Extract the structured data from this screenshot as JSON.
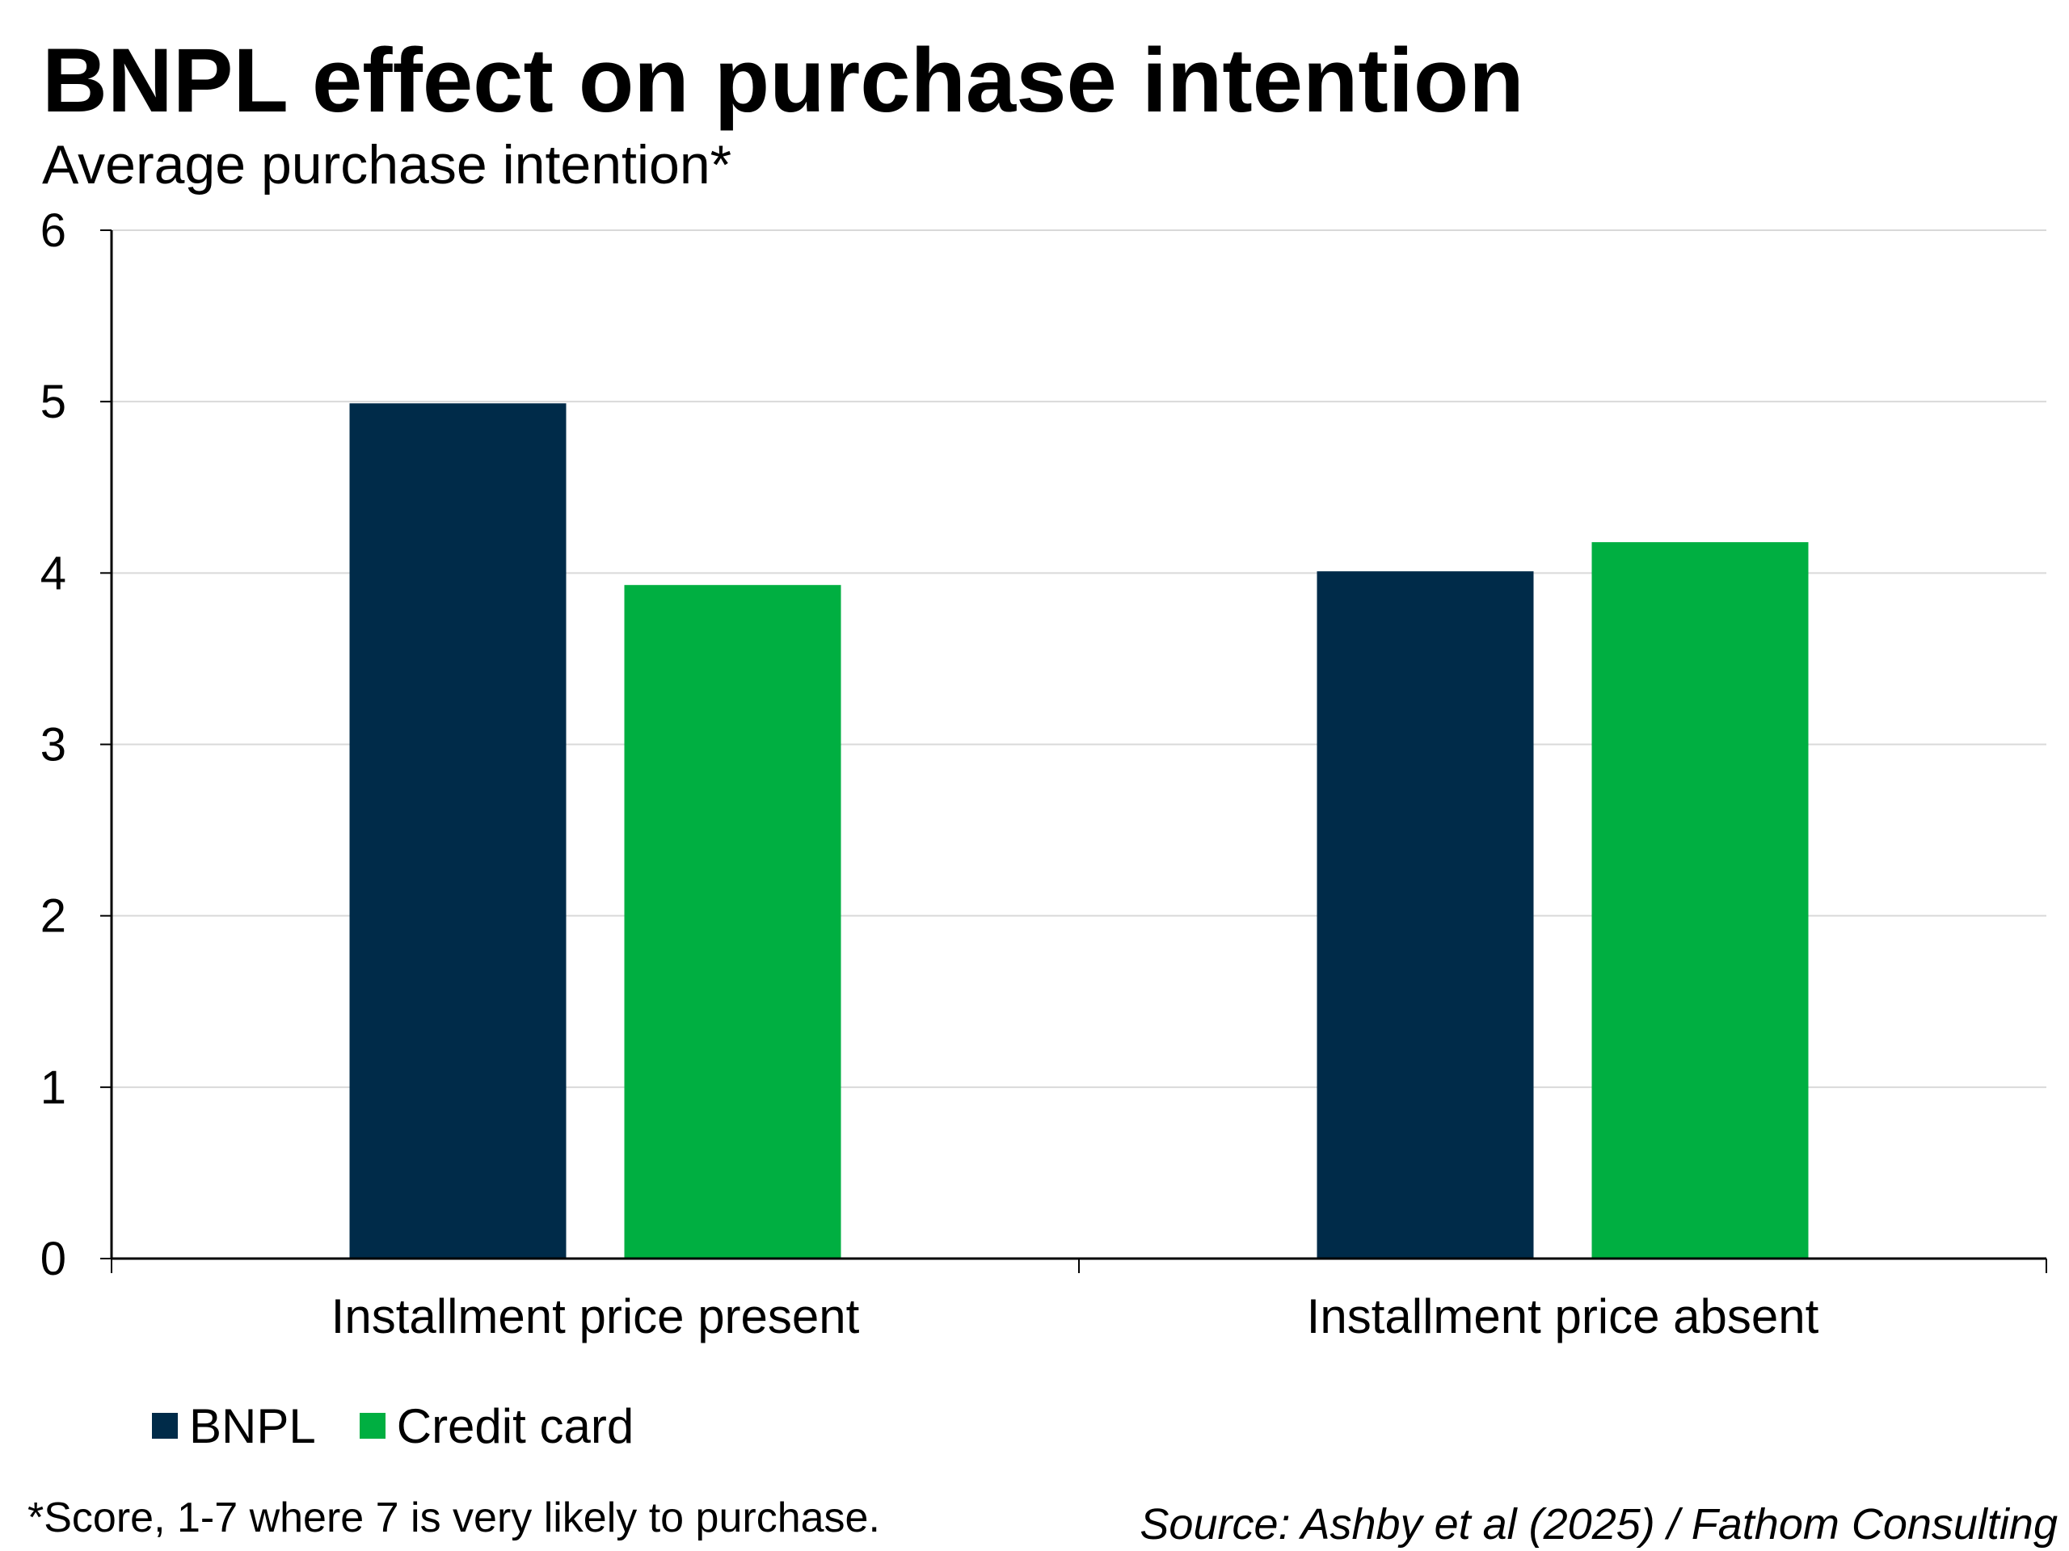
{
  "title": "BNPL effect on purchase intention",
  "subtitle": "Average purchase intention*",
  "footnote": "*Score, 1-7 where 7 is very likely to purchase.",
  "source": "Source: Ashby et al (2025) / Fathom Consulting",
  "chart_data": {
    "type": "bar",
    "title": "BNPL effect on purchase intention",
    "subtitle": "Average purchase intention*",
    "categories": [
      "Installment price present",
      "Installment price absent"
    ],
    "series": [
      {
        "name": "BNPL",
        "color": "#002B49",
        "values": [
          4.99,
          4.01
        ]
      },
      {
        "name": "Credit card",
        "color": "#00AF41",
        "values": [
          3.93,
          4.18
        ]
      }
    ],
    "ylim": [
      0,
      6
    ],
    "yticks": [
      "0",
      "1",
      "2",
      "3",
      "4",
      "5",
      "6"
    ],
    "grid": true,
    "legend_position": "bottom-left"
  }
}
